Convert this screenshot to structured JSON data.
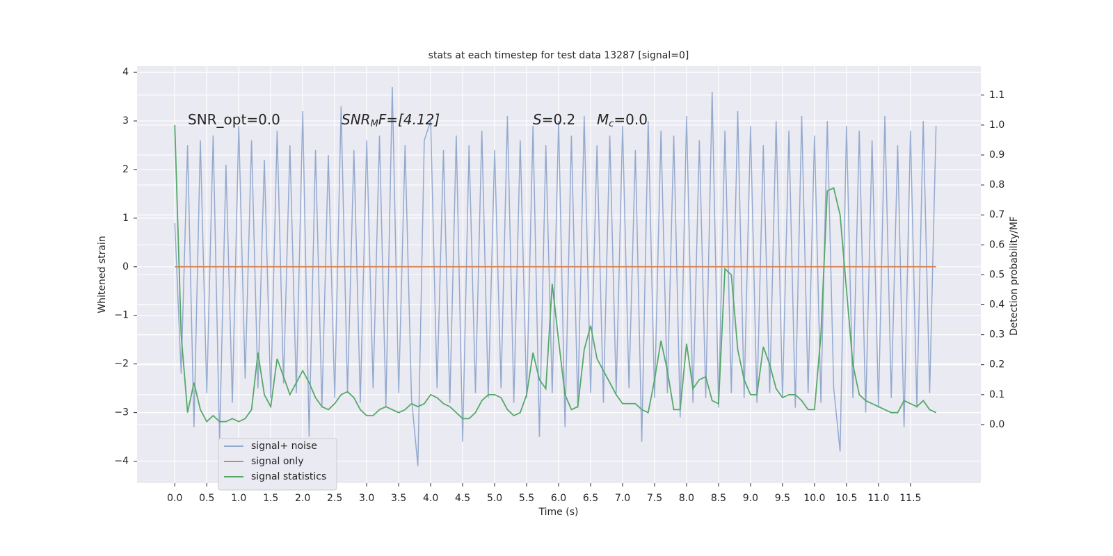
{
  "chart_data": {
    "type": "line",
    "title": "stats at each timestep for test data 13287 [signal=0]",
    "xlabel": "Time (s)",
    "ylabel": "Whitened strain",
    "y2label": "Detection probability/MF",
    "annotations": [
      [
        "SNR_opt=0.0"
      ],
      [
        "SNR",
        "M",
        "F=[4.12]"
      ],
      [
        "S",
        "=0.2"
      ],
      [
        "M",
        "c",
        "=0.0"
      ]
    ],
    "x": [
      0.0,
      0.1,
      0.2,
      0.3,
      0.4,
      0.5,
      0.6,
      0.7,
      0.8,
      0.9,
      1.0,
      1.1,
      1.2,
      1.3,
      1.4,
      1.5,
      1.6,
      1.7,
      1.8,
      1.9,
      2.0,
      2.1,
      2.2,
      2.3,
      2.4,
      2.5,
      2.6,
      2.7,
      2.8,
      2.9,
      3.0,
      3.1,
      3.2,
      3.3,
      3.4,
      3.5,
      3.6,
      3.7,
      3.8,
      3.9,
      4.0,
      4.1,
      4.2,
      4.3,
      4.4,
      4.5,
      4.6,
      4.7,
      4.8,
      4.9,
      5.0,
      5.1,
      5.2,
      5.3,
      5.4,
      5.5,
      5.6,
      5.7,
      5.8,
      5.9,
      6.0,
      6.1,
      6.2,
      6.3,
      6.4,
      6.5,
      6.6,
      6.7,
      6.8,
      6.9,
      7.0,
      7.1,
      7.2,
      7.3,
      7.4,
      7.5,
      7.6,
      7.7,
      7.8,
      7.9,
      8.0,
      8.1,
      8.2,
      8.3,
      8.4,
      8.5,
      8.6,
      8.7,
      8.8,
      8.9,
      9.0,
      9.1,
      9.2,
      9.3,
      9.4,
      9.5,
      9.6,
      9.7,
      9.8,
      9.9,
      10.0,
      10.1,
      10.2,
      10.3,
      10.4,
      10.5,
      10.6,
      10.7,
      10.8,
      10.9,
      11.0,
      11.1,
      11.2,
      11.3,
      11.4,
      11.5,
      11.6,
      11.7,
      11.8,
      11.9
    ],
    "series": [
      {
        "name": "signal+ noise",
        "color": "#4c72b0",
        "axis": "y",
        "values": [
          0.9,
          -2.2,
          2.5,
          -3.3,
          2.6,
          -2.6,
          2.7,
          -3.6,
          2.1,
          -2.8,
          2.9,
          -2.3,
          2.6,
          -2.5,
          2.2,
          -2.7,
          2.8,
          -2.4,
          2.5,
          -2.6,
          3.2,
          -3.5,
          2.4,
          -2.9,
          2.3,
          -2.7,
          3.3,
          -2.6,
          2.4,
          -2.8,
          2.6,
          -2.5,
          2.7,
          -2.9,
          3.7,
          -2.6,
          2.5,
          -2.7,
          -4.1,
          2.6,
          3.0,
          -2.5,
          2.4,
          -2.8,
          2.7,
          -3.6,
          2.5,
          -2.6,
          2.8,
          -2.7,
          2.4,
          -2.5,
          3.1,
          -2.8,
          2.6,
          -2.7,
          2.9,
          -3.5,
          2.5,
          -2.6,
          3.0,
          -3.3,
          2.7,
          -2.9,
          3.1,
          -2.6,
          2.5,
          -2.8,
          2.7,
          -2.6,
          2.9,
          -2.5,
          2.4,
          -3.6,
          3.0,
          -2.7,
          2.8,
          -2.6,
          2.7,
          -3.1,
          3.1,
          -2.8,
          2.6,
          -2.7,
          3.6,
          -2.9,
          2.8,
          -2.6,
          3.2,
          -2.7,
          2.9,
          -2.8,
          2.5,
          -2.6,
          3.0,
          -2.7,
          2.8,
          -2.9,
          3.1,
          -2.6,
          2.7,
          -2.8,
          3.0,
          -2.5,
          -3.8,
          2.9,
          -2.7,
          2.8,
          -3.0,
          2.6,
          -2.9,
          3.1,
          -2.7,
          2.5,
          -3.3,
          2.8,
          -2.9,
          3.0,
          -2.6,
          2.9
        ]
      },
      {
        "name": "signal only",
        "color": "#dd8452",
        "axis": "y",
        "values": [
          0,
          0,
          0,
          0,
          0,
          0,
          0,
          0,
          0,
          0,
          0,
          0,
          0,
          0,
          0,
          0,
          0,
          0,
          0,
          0,
          0,
          0,
          0,
          0,
          0,
          0,
          0,
          0,
          0,
          0,
          0,
          0,
          0,
          0,
          0,
          0,
          0,
          0,
          0,
          0,
          0,
          0,
          0,
          0,
          0,
          0,
          0,
          0,
          0,
          0,
          0,
          0,
          0,
          0,
          0,
          0,
          0,
          0,
          0,
          0,
          0,
          0,
          0,
          0,
          0,
          0,
          0,
          0,
          0,
          0,
          0,
          0,
          0,
          0,
          0,
          0,
          0,
          0,
          0,
          0,
          0,
          0,
          0,
          0,
          0,
          0,
          0,
          0,
          0,
          0,
          0,
          0,
          0,
          0,
          0,
          0,
          0,
          0,
          0,
          0,
          0,
          0,
          0,
          0,
          0,
          0,
          0,
          0,
          0,
          0,
          0,
          0,
          0,
          0,
          0,
          0,
          0,
          0,
          0,
          0
        ]
      },
      {
        "name": "signal statistics",
        "color": "#55a868",
        "axis": "y2",
        "values": [
          1.0,
          0.3,
          0.04,
          0.14,
          0.05,
          0.01,
          0.03,
          0.01,
          0.01,
          0.02,
          0.01,
          0.02,
          0.05,
          0.24,
          0.1,
          0.06,
          0.22,
          0.16,
          0.1,
          0.14,
          0.18,
          0.14,
          0.09,
          0.06,
          0.05,
          0.07,
          0.1,
          0.11,
          0.09,
          0.05,
          0.03,
          0.03,
          0.05,
          0.06,
          0.05,
          0.04,
          0.05,
          0.07,
          0.06,
          0.07,
          0.1,
          0.09,
          0.07,
          0.06,
          0.04,
          0.02,
          0.02,
          0.04,
          0.08,
          0.1,
          0.1,
          0.09,
          0.05,
          0.03,
          0.04,
          0.1,
          0.24,
          0.15,
          0.12,
          0.47,
          0.28,
          0.1,
          0.05,
          0.06,
          0.25,
          0.33,
          0.22,
          0.18,
          0.14,
          0.1,
          0.07,
          0.07,
          0.07,
          0.05,
          0.04,
          0.15,
          0.28,
          0.18,
          0.05,
          0.05,
          0.27,
          0.12,
          0.15,
          0.16,
          0.08,
          0.07,
          0.52,
          0.5,
          0.25,
          0.15,
          0.1,
          0.1,
          0.26,
          0.2,
          0.12,
          0.09,
          0.1,
          0.1,
          0.08,
          0.05,
          0.05,
          0.3,
          0.78,
          0.79,
          0.7,
          0.45,
          0.2,
          0.1,
          0.08,
          0.07,
          0.06,
          0.05,
          0.04,
          0.04,
          0.08,
          0.07,
          0.06,
          0.08,
          0.05,
          0.04
        ]
      }
    ],
    "xlim": [
      -0.59,
      12.6
    ],
    "ylim": [
      -4.45,
      4.13
    ],
    "y2lim": [
      -0.195,
      1.197
    ],
    "xticks": [
      {
        "value": 0,
        "label": "0.0"
      },
      {
        "value": 0.5,
        "label": "0.5"
      },
      {
        "value": 1,
        "label": "1.0"
      },
      {
        "value": 1.5,
        "label": "1.5"
      },
      {
        "value": 2,
        "label": "2.0"
      },
      {
        "value": 2.5,
        "label": "2.5"
      },
      {
        "value": 3,
        "label": "3.0"
      },
      {
        "value": 3.5,
        "label": "3.5"
      },
      {
        "value": 4,
        "label": "4.0"
      },
      {
        "value": 4.5,
        "label": "4.5"
      },
      {
        "value": 5,
        "label": "5.0"
      },
      {
        "value": 5.5,
        "label": "5.5"
      },
      {
        "value": 6,
        "label": "6.0"
      },
      {
        "value": 6.5,
        "label": "6.5"
      },
      {
        "value": 7,
        "label": "7.0"
      },
      {
        "value": 7.5,
        "label": "7.5"
      },
      {
        "value": 8,
        "label": "8.0"
      },
      {
        "value": 8.5,
        "label": "8.5"
      },
      {
        "value": 9,
        "label": "9.0"
      },
      {
        "value": 9.5,
        "label": "9.5"
      },
      {
        "value": 10,
        "label": "10.0"
      },
      {
        "value": 10.5,
        "label": "10.5"
      },
      {
        "value": 11,
        "label": "11.0"
      },
      {
        "value": 11.5,
        "label": "11.5"
      }
    ],
    "yticks": [
      {
        "value": -4,
        "label": "−4"
      },
      {
        "value": -3,
        "label": "−3"
      },
      {
        "value": -2,
        "label": "−2"
      },
      {
        "value": -1,
        "label": "−1"
      },
      0,
      1,
      2,
      3,
      4
    ],
    "y2ticks": [
      {
        "value": 0,
        "label": "0.0"
      },
      {
        "value": 0.1,
        "label": "0.1"
      },
      {
        "value": 0.2,
        "label": "0.2"
      },
      {
        "value": 0.3,
        "label": "0.3"
      },
      {
        "value": 0.4,
        "label": "0.4"
      },
      {
        "value": 0.5,
        "label": "0.5"
      },
      {
        "value": 0.6,
        "label": "0.6"
      },
      {
        "value": 0.7,
        "label": "0.7"
      },
      {
        "value": 0.8,
        "label": "0.8"
      },
      {
        "value": 0.9,
        "label": "0.9"
      },
      {
        "value": 1,
        "label": "1.0"
      },
      {
        "value": 1.1,
        "label": "1.1"
      }
    ],
    "grid": true,
    "legend": "lower left"
  }
}
